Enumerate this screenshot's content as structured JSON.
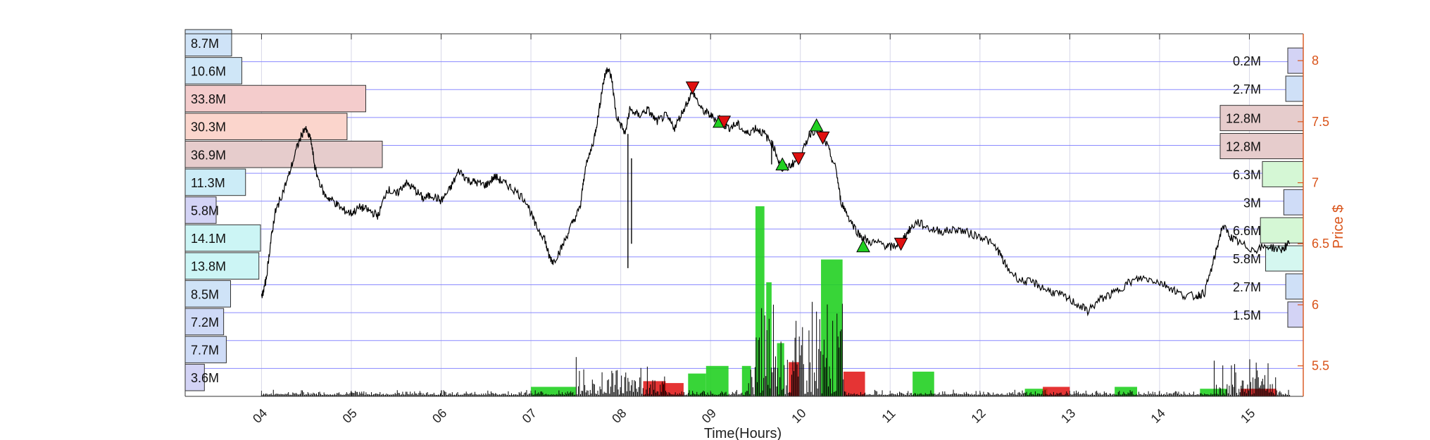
{
  "chart_data": {
    "type": "line",
    "xlabel": "Time(Hours)",
    "ylabel": "Price $",
    "xlim": [
      3.15,
      15.6
    ],
    "ylim": [
      5.25,
      8.22
    ],
    "x_ticks": [
      "04",
      "05",
      "06",
      "07",
      "08",
      "09",
      "10",
      "11",
      "12",
      "13",
      "14",
      "15"
    ],
    "y_ticks": [
      5.5,
      6,
      6.5,
      7,
      7.5,
      8
    ],
    "grid": true,
    "price_series": [
      [
        4.0,
        6.05
      ],
      [
        4.05,
        6.2
      ],
      [
        4.1,
        6.5
      ],
      [
        4.15,
        6.75
      ],
      [
        4.2,
        6.85
      ],
      [
        4.3,
        7.05
      ],
      [
        4.4,
        7.3
      ],
      [
        4.48,
        7.45
      ],
      [
        4.55,
        7.35
      ],
      [
        4.6,
        7.1
      ],
      [
        4.7,
        6.9
      ],
      [
        4.8,
        6.85
      ],
      [
        4.9,
        6.78
      ],
      [
        5.0,
        6.75
      ],
      [
        5.1,
        6.8
      ],
      [
        5.2,
        6.77
      ],
      [
        5.3,
        6.73
      ],
      [
        5.4,
        6.95
      ],
      [
        5.5,
        6.9
      ],
      [
        5.6,
        7.0
      ],
      [
        5.7,
        6.95
      ],
      [
        5.8,
        6.87
      ],
      [
        5.9,
        6.9
      ],
      [
        6.0,
        6.85
      ],
      [
        6.1,
        6.95
      ],
      [
        6.2,
        7.1
      ],
      [
        6.3,
        7.02
      ],
      [
        6.4,
        7.0
      ],
      [
        6.5,
        6.98
      ],
      [
        6.6,
        7.05
      ],
      [
        6.7,
        7.0
      ],
      [
        6.8,
        6.95
      ],
      [
        6.95,
        6.85
      ],
      [
        7.05,
        6.65
      ],
      [
        7.15,
        6.55
      ],
      [
        7.2,
        6.4
      ],
      [
        7.25,
        6.35
      ],
      [
        7.35,
        6.48
      ],
      [
        7.45,
        6.65
      ],
      [
        7.55,
        6.8
      ],
      [
        7.6,
        7.1
      ],
      [
        7.7,
        7.35
      ],
      [
        7.75,
        7.55
      ],
      [
        7.8,
        7.8
      ],
      [
        7.85,
        7.95
      ],
      [
        7.9,
        7.85
      ],
      [
        7.95,
        7.55
      ],
      [
        8.05,
        7.4
      ],
      [
        8.1,
        7.6
      ],
      [
        8.2,
        7.55
      ],
      [
        8.3,
        7.6
      ],
      [
        8.4,
        7.5
      ],
      [
        8.5,
        7.55
      ],
      [
        8.6,
        7.45
      ],
      [
        8.7,
        7.6
      ],
      [
        8.8,
        7.75
      ],
      [
        8.9,
        7.6
      ],
      [
        9.0,
        7.55
      ],
      [
        9.1,
        7.5
      ],
      [
        9.2,
        7.45
      ],
      [
        9.3,
        7.48
      ],
      [
        9.4,
        7.4
      ],
      [
        9.5,
        7.45
      ],
      [
        9.6,
        7.4
      ],
      [
        9.7,
        7.3
      ],
      [
        9.8,
        7.1
      ],
      [
        9.9,
        7.15
      ],
      [
        10.0,
        7.2
      ],
      [
        10.1,
        7.4
      ],
      [
        10.2,
        7.45
      ],
      [
        10.3,
        7.3
      ],
      [
        10.4,
        7.1
      ],
      [
        10.45,
        6.85
      ],
      [
        10.55,
        6.7
      ],
      [
        10.65,
        6.58
      ],
      [
        10.75,
        6.52
      ],
      [
        10.9,
        6.5
      ],
      [
        11.0,
        6.47
      ],
      [
        11.1,
        6.5
      ],
      [
        11.2,
        6.6
      ],
      [
        11.3,
        6.68
      ],
      [
        11.45,
        6.62
      ],
      [
        11.6,
        6.6
      ],
      [
        11.75,
        6.62
      ],
      [
        11.9,
        6.58
      ],
      [
        12.05,
        6.55
      ],
      [
        12.2,
        6.45
      ],
      [
        12.3,
        6.3
      ],
      [
        12.45,
        6.2
      ],
      [
        12.6,
        6.18
      ],
      [
        12.75,
        6.12
      ],
      [
        12.9,
        6.08
      ],
      [
        13.05,
        6.02
      ],
      [
        13.2,
        5.95
      ],
      [
        13.35,
        6.05
      ],
      [
        13.5,
        6.1
      ],
      [
        13.65,
        6.18
      ],
      [
        13.8,
        6.22
      ],
      [
        13.95,
        6.2
      ],
      [
        14.1,
        6.15
      ],
      [
        14.25,
        6.08
      ],
      [
        14.4,
        6.07
      ],
      [
        14.5,
        6.1
      ],
      [
        14.6,
        6.35
      ],
      [
        14.7,
        6.65
      ],
      [
        14.8,
        6.55
      ],
      [
        14.9,
        6.5
      ],
      [
        15.05,
        6.45
      ],
      [
        15.2,
        6.48
      ],
      [
        15.35,
        6.45
      ],
      [
        15.45,
        6.5
      ]
    ],
    "spikes": [
      {
        "x": 8.08,
        "low": 6.3,
        "high": 7.4
      },
      {
        "x": 8.12,
        "low": 6.5,
        "high": 7.2
      },
      {
        "x": 9.68,
        "low": 7.15,
        "high": 7.35
      }
    ],
    "buy_markers": [
      [
        9.1,
        7.5
      ],
      [
        9.8,
        7.15
      ],
      [
        10.18,
        7.47
      ],
      [
        10.7,
        6.48
      ]
    ],
    "sell_markers": [
      [
        8.8,
        7.78
      ],
      [
        9.15,
        7.5
      ],
      [
        9.98,
        7.2
      ],
      [
        10.25,
        7.37
      ],
      [
        11.12,
        6.5
      ]
    ],
    "volume_profile_left": [
      {
        "label": "8.7M",
        "value": 8.7,
        "color": "#cfe3f7"
      },
      {
        "label": "10.6M",
        "value": 10.6,
        "color": "#cfe6f7"
      },
      {
        "label": "33.8M",
        "value": 33.8,
        "color": "#f4cccc"
      },
      {
        "label": "30.3M",
        "value": 30.3,
        "color": "#fbd5cc"
      },
      {
        "label": "36.9M",
        "value": 36.9,
        "color": "#e6cccc"
      },
      {
        "label": "11.3M",
        "value": 11.3,
        "color": "#ccecf7"
      },
      {
        "label": "5.8M",
        "value": 5.8,
        "color": "#d3d3f5"
      },
      {
        "label": "14.1M",
        "value": 14.1,
        "color": "#ccf5f5"
      },
      {
        "label": "13.8M",
        "value": 13.8,
        "color": "#ccf5f5"
      },
      {
        "label": "8.5M",
        "value": 8.5,
        "color": "#cfe3f7"
      },
      {
        "label": "7.2M",
        "value": 7.2,
        "color": "#cfdaf7"
      },
      {
        "label": "7.7M",
        "value": 7.7,
        "color": "#cfdcf7"
      },
      {
        "label": "3.6M",
        "value": 3.6,
        "color": "#d3d3f5"
      }
    ],
    "volume_profile_right": [
      {
        "label": "0.2M",
        "value": 0.2,
        "price": 8.0,
        "color": "#d3d3f5"
      },
      {
        "label": "2.7M",
        "value": 2.7,
        "price": 7.77,
        "color": "#cfe0f7"
      },
      {
        "label": "12.8M",
        "value": 12.8,
        "price": 7.53,
        "color": "#e6cccc"
      },
      {
        "label": "12.8M",
        "value": 12.8,
        "price": 7.3,
        "color": "#e6cccc"
      },
      {
        "label": "6.3M",
        "value": 6.3,
        "price": 7.07,
        "color": "#d5f7d5"
      },
      {
        "label": "3M",
        "value": 3.0,
        "price": 6.84,
        "color": "#cfdcf7"
      },
      {
        "label": "6.6M",
        "value": 6.6,
        "price": 6.61,
        "color": "#d5f7d5"
      },
      {
        "label": "5.8M",
        "value": 5.8,
        "price": 6.38,
        "color": "#d5f7f0"
      },
      {
        "label": "2.7M",
        "value": 2.7,
        "price": 6.15,
        "color": "#cfe0f7"
      },
      {
        "label": "1.5M",
        "value": 1.5,
        "price": 5.92,
        "color": "#d3d3f5"
      }
    ],
    "volume_bars_green": [
      {
        "x": 7.0,
        "w": 0.5,
        "v": 0.05
      },
      {
        "x": 8.75,
        "w": 0.2,
        "v": 0.12
      },
      {
        "x": 8.95,
        "w": 0.25,
        "v": 0.16
      },
      {
        "x": 9.35,
        "w": 0.1,
        "v": 0.16
      },
      {
        "x": 9.5,
        "w": 0.1,
        "v": 1.0
      },
      {
        "x": 9.62,
        "w": 0.06,
        "v": 0.6
      },
      {
        "x": 9.74,
        "w": 0.08,
        "v": 0.28
      },
      {
        "x": 10.23,
        "w": 0.24,
        "v": 0.72
      },
      {
        "x": 11.25,
        "w": 0.24,
        "v": 0.13
      },
      {
        "x": 14.45,
        "w": 0.3,
        "v": 0.04
      },
      {
        "x": 13.5,
        "w": 0.25,
        "v": 0.05
      },
      {
        "x": 12.5,
        "w": 0.25,
        "v": 0.04
      }
    ],
    "volume_bars_red": [
      {
        "x": 8.25,
        "w": 0.25,
        "v": 0.08
      },
      {
        "x": 8.45,
        "w": 0.25,
        "v": 0.07
      },
      {
        "x": 9.87,
        "w": 0.12,
        "v": 0.18
      },
      {
        "x": 10.48,
        "w": 0.24,
        "v": 0.13
      },
      {
        "x": 12.7,
        "w": 0.3,
        "v": 0.05
      },
      {
        "x": 14.9,
        "w": 0.4,
        "v": 0.04
      }
    ]
  },
  "colors": {
    "price_axis": "#d95319",
    "grid": "#8a8aff",
    "buy": "#22d022",
    "sell": "#e01010",
    "line": "#000000"
  }
}
